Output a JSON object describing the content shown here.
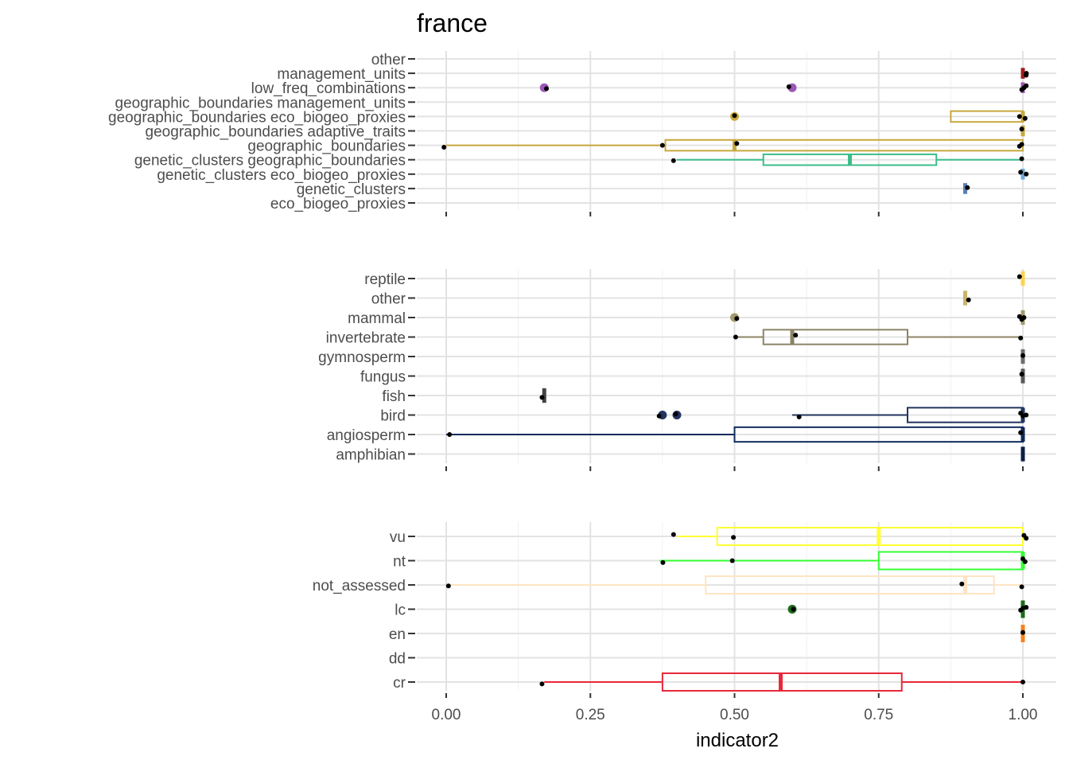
{
  "chart_data": {
    "type": "boxplot",
    "title": "france",
    "xlabel": "indicator2",
    "xlim": [
      0,
      1
    ],
    "x_ticks": [
      "0.00",
      "0.25",
      "0.50",
      "0.75",
      "1.00"
    ],
    "x_tick_values": [
      0,
      0.25,
      0.5,
      0.75,
      1.0
    ],
    "grid": true,
    "legend": "none",
    "panels": [
      {
        "categories": [
          {
            "name": "other",
            "color": "#888888",
            "box": null,
            "outliers": [],
            "points": []
          },
          {
            "name": "management_units",
            "color": "#a11d1d",
            "box": [
              1.0,
              1.0,
              1.0,
              1.0,
              1.0
            ],
            "outliers": [],
            "points": [
              1.0,
              1.01
            ]
          },
          {
            "name": "low_freq_combinations",
            "color": "#9b59b6",
            "box": [
              1.0,
              1.0,
              1.0,
              1.0,
              1.0
            ],
            "outliers": [
              0.17,
              0.6
            ],
            "points": [
              0.17,
              0.6,
              1.0,
              1.0,
              1.0
            ]
          },
          {
            "name": "geographic_boundaries management_units",
            "color": "#888888",
            "box": null,
            "outliers": [],
            "points": []
          },
          {
            "name": "geographic_boundaries eco_biogeo_proxies",
            "color": "#c9a83c",
            "box": [
              1.0,
              0.875,
              1.0,
              1.0,
              1.0
            ],
            "outliers": [
              0.5
            ],
            "points": [
              0.5,
              1.0,
              1.0
            ]
          },
          {
            "name": "geographic_boundaries adaptive_traits",
            "color": "#c9a83c",
            "box": [
              1.0,
              1.0,
              1.0,
              1.0,
              1.0
            ],
            "outliers": [],
            "points": [
              1.0
            ]
          },
          {
            "name": "geographic_boundaries",
            "color": "#c9a83c",
            "box": [
              0.0,
              0.38,
              0.5,
              1.0,
              1.0
            ],
            "outliers": [],
            "points": [
              0.0,
              0.375,
              0.5,
              1.0,
              1.0
            ]
          },
          {
            "name": "genetic_clusters geographic_boundaries",
            "color": "#3dbd8a",
            "box": [
              0.4,
              0.55,
              0.7,
              0.85,
              1.0
            ],
            "outliers": [],
            "points": [
              0.4,
              1.0
            ]
          },
          {
            "name": "genetic_clusters eco_biogeo_proxies",
            "color": "#6fa8dc",
            "box": [
              1.0,
              1.0,
              1.0,
              1.0,
              1.0
            ],
            "outliers": [],
            "points": [
              1.0,
              1.0
            ]
          },
          {
            "name": "genetic_clusters",
            "color": "#5b7db8",
            "box": [
              0.9,
              0.9,
              0.9,
              0.9,
              0.9
            ],
            "outliers": [],
            "points": [
              0.9
            ]
          },
          {
            "name": "eco_biogeo_proxies",
            "color": "#888888",
            "box": null,
            "outliers": [],
            "points": []
          }
        ]
      },
      {
        "categories": [
          {
            "name": "reptile",
            "color": "#ffd24d",
            "box": [
              1.0,
              1.0,
              1.0,
              1.0,
              1.0
            ],
            "outliers": [],
            "points": [
              1.0
            ]
          },
          {
            "name": "other",
            "color": "#c9b46e",
            "box": [
              0.9,
              0.9,
              0.9,
              0.9,
              0.9
            ],
            "outliers": [],
            "points": [
              0.9
            ]
          },
          {
            "name": "mammal",
            "color": "#a39a6e",
            "box": [
              1.0,
              1.0,
              1.0,
              1.0,
              1.0
            ],
            "outliers": [
              0.5
            ],
            "points": [
              0.5,
              1.0,
              1.0,
              1.0
            ]
          },
          {
            "name": "invertebrate",
            "color": "#8c8466",
            "box": [
              0.5,
              0.55,
              0.6,
              0.8,
              1.0
            ],
            "outliers": [],
            "points": [
              0.5,
              0.6,
              1.0
            ]
          },
          {
            "name": "gymnosperm",
            "color": "#6e6e6e",
            "box": [
              1.0,
              1.0,
              1.0,
              1.0,
              1.0
            ],
            "outliers": [],
            "points": [
              1.0
            ]
          },
          {
            "name": "fungus",
            "color": "#5a5a5a",
            "box": [
              1.0,
              1.0,
              1.0,
              1.0,
              1.0
            ],
            "outliers": [],
            "points": [
              1.0
            ]
          },
          {
            "name": "fish",
            "color": "#444444",
            "box": [
              0.17,
              0.17,
              0.17,
              0.17,
              0.17
            ],
            "outliers": [],
            "points": [
              0.17
            ]
          },
          {
            "name": "bird",
            "color": "#23355e",
            "box": [
              0.6,
              0.8,
              1.0,
              1.0,
              1.0
            ],
            "outliers": [
              0.375,
              0.4
            ],
            "points": [
              0.375,
              0.4,
              0.61,
              1.0,
              1.0,
              1.0
            ]
          },
          {
            "name": "angiosperm",
            "color": "#0f2b5b",
            "box": [
              0.0,
              0.5,
              1.0,
              1.0,
              1.0
            ],
            "outliers": [],
            "points": [
              0.0,
              1.0
            ]
          },
          {
            "name": "amphibian",
            "color": "#0b1f44",
            "box": [
              1.0,
              1.0,
              1.0,
              1.0,
              1.0
            ],
            "outliers": [],
            "points": []
          }
        ]
      },
      {
        "categories": [
          {
            "name": "vu",
            "color": "#ffff33",
            "box": [
              0.4,
              0.47,
              0.75,
              1.0,
              1.0
            ],
            "outliers": [],
            "points": [
              0.4,
              0.5,
              1.0,
              1.0
            ]
          },
          {
            "name": "nt",
            "color": "#33ff33",
            "box": [
              0.37,
              0.75,
              1.0,
              1.0,
              1.0
            ],
            "outliers": [],
            "points": [
              0.37,
              0.5,
              1.0,
              1.0
            ]
          },
          {
            "name": "not_assessed",
            "color": "#ffe4c4",
            "box": [
              0.0,
              0.45,
              0.9,
              0.95,
              1.0
            ],
            "outliers": [],
            "points": [
              0.0,
              0.9,
              1.0
            ]
          },
          {
            "name": "lc",
            "color": "#1a6b1a",
            "box": [
              1.0,
              1.0,
              1.0,
              1.0,
              1.0
            ],
            "outliers": [
              0.6
            ],
            "points": [
              0.6,
              1.0,
              1.0,
              1.0
            ]
          },
          {
            "name": "en",
            "color": "#f58220",
            "box": [
              1.0,
              1.0,
              1.0,
              1.0,
              1.0
            ],
            "outliers": [],
            "points": [
              1.0
            ]
          },
          {
            "name": "dd",
            "color": "#888888",
            "box": null,
            "outliers": [],
            "points": []
          },
          {
            "name": "cr",
            "color": "#e8283a",
            "box": [
              0.17,
              0.375,
              0.58,
              0.79,
              1.0
            ],
            "outliers": [],
            "points": [
              0.17,
              1.0
            ]
          }
        ]
      }
    ]
  }
}
